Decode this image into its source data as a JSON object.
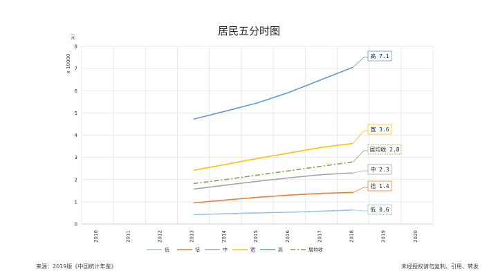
{
  "chart_data": {
    "type": "line",
    "title": "居民五分时图",
    "y_unit": "元",
    "y_scale_label": "x 10000",
    "categories": [
      "2010",
      "2011",
      "2012",
      "2013",
      "2014",
      "2015",
      "2016",
      "2017",
      "2018",
      "2019",
      "2020"
    ],
    "ylim": [
      0,
      8
    ],
    "yticks": [
      0,
      1,
      2,
      3,
      4,
      5,
      6,
      7,
      8
    ],
    "grid": true,
    "legend_position": "bottom",
    "series": [
      {
        "name": "低",
        "color": "#9dc3e6",
        "dash": "",
        "values": [
          null,
          null,
          null,
          0.42,
          0.46,
          0.5,
          0.53,
          0.58,
          0.63,
          null,
          null
        ],
        "callout": "低 0.6"
      },
      {
        "name": "拮",
        "color": "#ed7d31",
        "dash": "",
        "values": [
          null,
          null,
          null,
          0.95,
          1.08,
          1.2,
          1.3,
          1.38,
          1.42,
          null,
          null
        ],
        "callout": "拮 1.4"
      },
      {
        "name": "中",
        "color": "#a5a5a5",
        "dash": "",
        "values": [
          null,
          null,
          null,
          1.57,
          1.75,
          1.92,
          2.08,
          2.22,
          2.3,
          null,
          null
        ],
        "callout": "中 2.3"
      },
      {
        "name": "宽",
        "color": "#ffc000",
        "dash": "",
        "values": [
          null,
          null,
          null,
          2.42,
          2.68,
          2.95,
          3.2,
          3.45,
          3.63,
          null,
          null
        ],
        "callout": "宽 3.6"
      },
      {
        "name": "高",
        "color": "#5b9bd5",
        "dash": "",
        "values": [
          null,
          null,
          null,
          4.72,
          5.08,
          5.45,
          5.93,
          6.5,
          7.06,
          null,
          null
        ],
        "callout": "高 7.1"
      },
      {
        "name": "居均收",
        "color": "#70ad47",
        "dash": "7,3,2,3",
        "values": [
          null,
          null,
          null,
          1.82,
          2.0,
          2.2,
          2.4,
          2.6,
          2.8,
          null,
          null
        ],
        "callout": "居均收 2.8"
      }
    ]
  },
  "footer": {
    "source": "来源：2019版《中国统计年鉴》",
    "notice": "未经授权请勿复制、引用、转发"
  }
}
